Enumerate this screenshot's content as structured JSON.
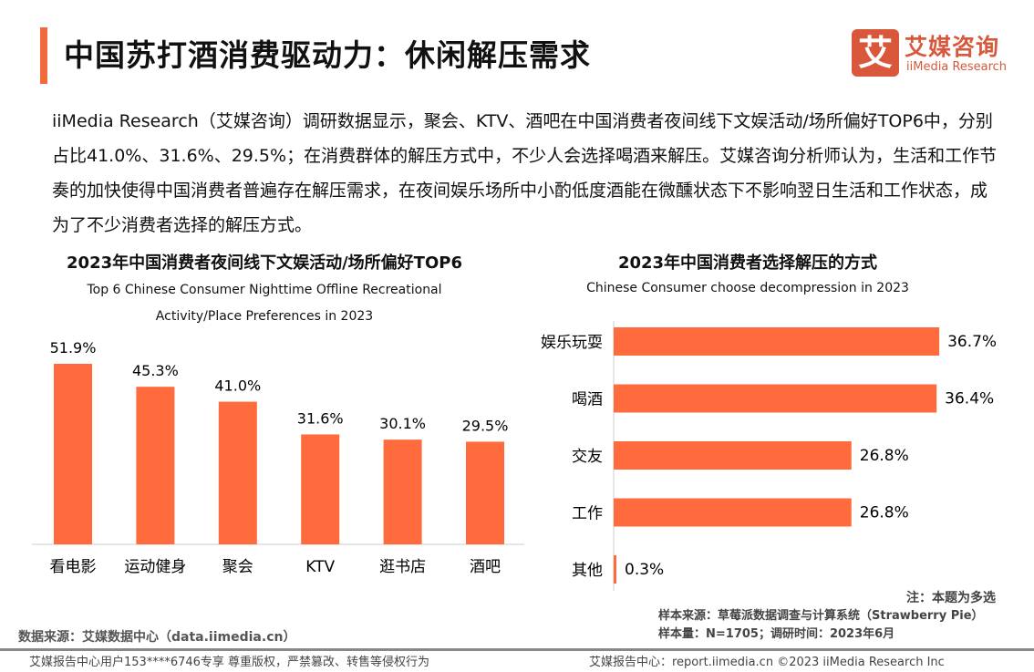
{
  "header": {
    "title": "中国苏打酒消费驱动力：休闲解压需求"
  },
  "logo": {
    "mark": "艾",
    "cn": "艾媒咨询",
    "en": "iiMedia Research"
  },
  "paragraph": "iiMedia Research（艾媒咨询）调研数据显示，聚会、KTV、酒吧在中国消费者夜间线下文娱活动/场所偏好TOP6中，分别占比41.0%、31.6%、29.5%；在消费群体的解压方式中，不少人会选择喝酒来解压。艾媒咨询分析师认为，生活和工作节奏的加快使得中国消费者普遍存在解压需求，在夜间娱乐场所中小酌低度酒能在微醺状态下不影响翌日生活和工作状态，成为了不少消费者选择的解压方式。",
  "colors": {
    "accent": "#f26b3d",
    "bar": "#ff6b3d"
  },
  "chart_data": [
    {
      "type": "bar",
      "orientation": "vertical",
      "title": "2023年中国消费者夜间线下文娱活动/场所偏好TOP6",
      "subtitle": "Top 6 Chinese Consumer Nighttime Offline Recreational Activity/Place Preferences in 2023",
      "categories": [
        "看电影",
        "运动健身",
        "聚会",
        "KTV",
        "逛书店",
        "酒吧"
      ],
      "values": [
        51.9,
        45.3,
        41.0,
        31.6,
        30.1,
        29.5
      ],
      "labels": [
        "51.9%",
        "45.3%",
        "41.0%",
        "31.6%",
        "30.1%",
        "29.5%"
      ],
      "unit": "%"
    },
    {
      "type": "bar",
      "orientation": "horizontal",
      "title": "2023年中国消费者选择解压的方式",
      "subtitle": "Chinese Consumer choose decompression in 2023",
      "categories": [
        "娱乐玩耍",
        "喝酒",
        "交友",
        "工作",
        "其他"
      ],
      "values": [
        36.7,
        36.4,
        26.8,
        26.8,
        0.3
      ],
      "labels": [
        "36.7%",
        "36.4%",
        "26.8%",
        "26.8%",
        "0.3%"
      ],
      "unit": "%"
    }
  ],
  "notes": {
    "multi": "注：本题为多选",
    "sample_source": "样本来源：草莓派数据调查与计算系统（Strawberry Pie）",
    "sample_size": "样本量：N=1705；调研时间：2023年6月",
    "data_source": "数据来源：艾媒数据中心（data.iimedia.cn）"
  },
  "footer": {
    "left": "艾媒报告中心用户153****6746专享 尊重版权，严禁篡改、转售等侵权行为",
    "right": "艾媒报告中心：report.iimedia.cn    ©2023  iiMedia Research  Inc"
  }
}
